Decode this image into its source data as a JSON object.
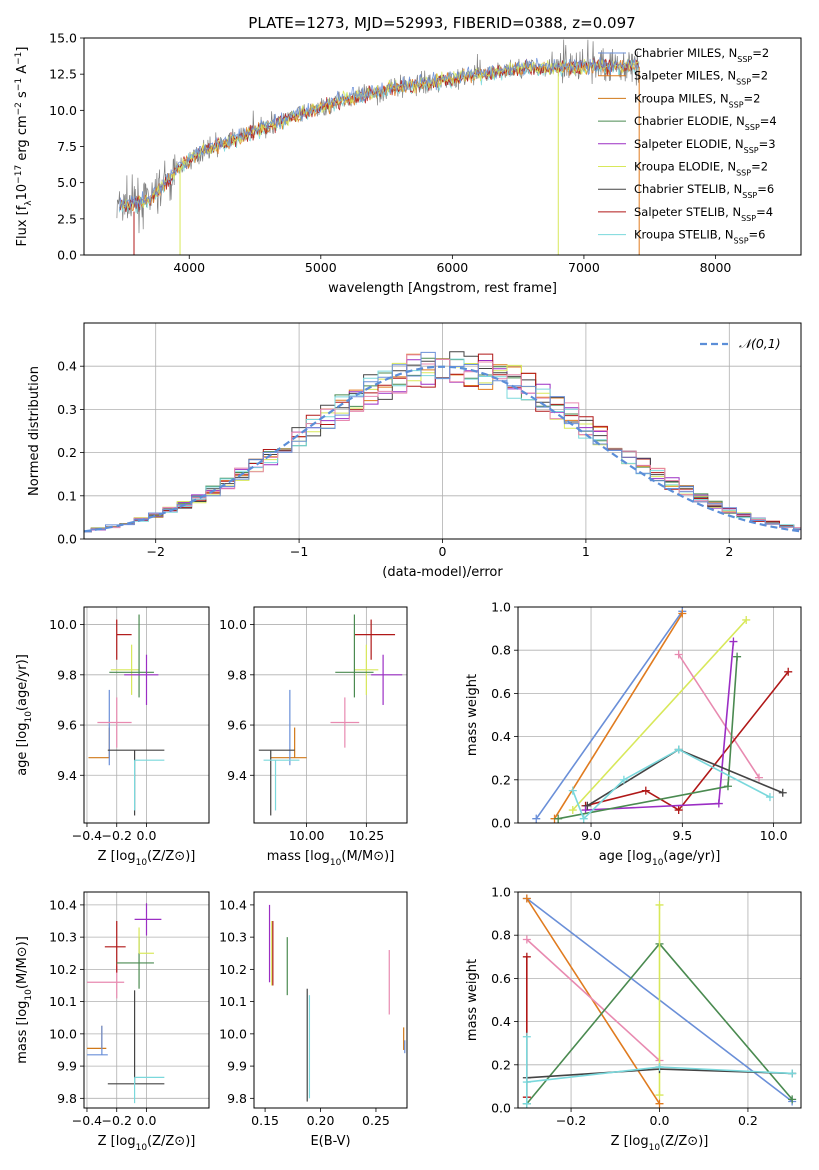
{
  "figure_title": "PLATE=1273, MJD=52993, FIBERID=0388, z=0.097",
  "colors": {
    "Chabrier MILES": "#6a8fd8",
    "Salpeter MILES": "#e07b1f",
    "Kroupa MILES": "#d07818",
    "Chabrier ELODIE": "#4a8a50",
    "Salpeter ELODIE": "#9b2ec4",
    "Kroupa ELODIE": "#d8e85a",
    "Chabrier STELIB": "#444444",
    "Salpeter STELIB": "#b01818",
    "Kroupa STELIB": "#7ad8dc",
    "pink": "#e88ab0",
    "green2": "#6a9a60"
  },
  "chart_data": [
    {
      "id": "spectrum",
      "type": "line",
      "xlabel": "wavelength [Angstrom, rest frame]",
      "ylabel": "Flux [f_λ10^-17 erg cm^-2 s^-1 A^-1]",
      "xlim": [
        3200,
        8650
      ],
      "ylim": [
        0,
        15
      ],
      "xticks": [
        4000,
        5000,
        6000,
        7000,
        8000
      ],
      "yticks": [
        0.0,
        2.5,
        5.0,
        7.5,
        10.0,
        12.5,
        15.0
      ],
      "legend": [
        {
          "label": "Chabrier MILES, N",
          "sub": "SSP",
          "tail": "=2"
        },
        {
          "label": "Salpeter MILES, N",
          "sub": "SSP",
          "tail": "=2"
        },
        {
          "label": "Kroupa MILES, N",
          "sub": "SSP",
          "tail": "=2"
        },
        {
          "label": "Chabrier ELODIE, N",
          "sub": "SSP",
          "tail": "=4"
        },
        {
          "label": "Salpeter ELODIE, N",
          "sub": "SSP",
          "tail": "=3"
        },
        {
          "label": "Kroupa ELODIE, N",
          "sub": "SSP",
          "tail": "=2"
        },
        {
          "label": "Chabrier STELIB, N",
          "sub": "SSP",
          "tail": "=6"
        },
        {
          "label": "Salpeter STELIB, N",
          "sub": "SSP",
          "tail": "=4"
        },
        {
          "label": "Kroupa STELIB, N",
          "sub": "SSP",
          "tail": "=6"
        }
      ],
      "continuum_points": [
        [
          3450,
          3.3
        ],
        [
          3700,
          3.8
        ],
        [
          3950,
          6.2
        ],
        [
          4100,
          7.2
        ],
        [
          4400,
          8.2
        ],
        [
          4800,
          9.6
        ],
        [
          5200,
          10.8
        ],
        [
          5600,
          11.6
        ],
        [
          6000,
          12.2
        ],
        [
          6500,
          12.9
        ],
        [
          7000,
          13.0
        ],
        [
          7400,
          13.1
        ]
      ]
    },
    {
      "id": "residuals",
      "type": "step",
      "xlabel": "(data-model)/error",
      "ylabel": "Normed distribution",
      "xlim": [
        -2.5,
        2.5
      ],
      "ylim": [
        0,
        0.5
      ],
      "xticks": [
        -2,
        -1,
        0,
        1,
        2
      ],
      "yticks": [
        0.0,
        0.1,
        0.2,
        0.3,
        0.4
      ],
      "legend": "𝒩(0,1)",
      "bin_width": 0.1
    },
    {
      "id": "age_vs_Z",
      "type": "errorbar",
      "xlabel": "Z [log10(Z/Z⊙)]",
      "ylabel": "age [log10(age/yr)]",
      "xlim": [
        -0.42,
        0.42
      ],
      "ylim": [
        9.21,
        10.07
      ],
      "xticks": [
        -0.4,
        -0.2,
        0.0
      ],
      "yticks": [
        9.4,
        9.6,
        9.8,
        10.0
      ],
      "points": [
        {
          "x": -0.25,
          "y": 9.47,
          "xe": [
            0.14,
            0.0
          ],
          "ye": [
            0.0,
            0.12
          ],
          "c": "Kroupa MILES"
        },
        {
          "x": -0.25,
          "y": 9.44,
          "xe": [
            0.0,
            0.0
          ],
          "ye": [
            0.0,
            0.3
          ],
          "c": "Chabrier MILES"
        },
        {
          "x": -0.2,
          "y": 9.61,
          "xe": [
            0.13,
            0.1
          ],
          "ye": [
            0.1,
            0.1
          ],
          "c": "pink"
        },
        {
          "x": -0.2,
          "y": 9.96,
          "xe": [
            0.0,
            0.1
          ],
          "ye": [
            0.1,
            0.06
          ],
          "c": "Salpeter STELIB"
        },
        {
          "x": -0.08,
          "y": 9.5,
          "xe": [
            0.18,
            0.2
          ],
          "ye": [
            0.26,
            0.0
          ],
          "c": "Chabrier STELIB"
        },
        {
          "x": -0.08,
          "y": 9.46,
          "xe": [
            0.0,
            0.2
          ],
          "ye": [
            0.2,
            0.0
          ],
          "c": "Kroupa STELIB"
        },
        {
          "x": -0.1,
          "y": 9.82,
          "xe": [
            0.14,
            0.05
          ],
          "ye": [
            0.1,
            0.1
          ],
          "c": "Kroupa ELODIE"
        },
        {
          "x": -0.05,
          "y": 9.81,
          "xe": [
            0.2,
            0.1
          ],
          "ye": [
            0.1,
            0.23
          ],
          "c": "Chabrier ELODIE"
        },
        {
          "x": 0.0,
          "y": 9.8,
          "xe": [
            0.15,
            0.08
          ],
          "ye": [
            0.12,
            0.08
          ],
          "c": "Salpeter ELODIE"
        }
      ]
    },
    {
      "id": "age_vs_mass",
      "type": "errorbar",
      "xlabel": "mass [log10(M/M⊙)]",
      "ylabel": "",
      "xlim": [
        9.78,
        10.42
      ],
      "ylim": [
        9.21,
        10.07
      ],
      "xticks": [
        10.0,
        10.25
      ],
      "yticks": [
        9.4,
        9.6,
        9.8,
        10.0
      ],
      "points": [
        {
          "x": 9.95,
          "y": 9.47,
          "xe": [
            0.1,
            0.05
          ],
          "ye": [
            0.0,
            0.12
          ],
          "c": "Kroupa MILES"
        },
        {
          "x": 9.93,
          "y": 9.44,
          "xe": [
            0.0,
            0.0
          ],
          "ye": [
            0.0,
            0.3
          ],
          "c": "Chabrier MILES"
        },
        {
          "x": 10.16,
          "y": 9.61,
          "xe": [
            0.06,
            0.06
          ],
          "ye": [
            0.1,
            0.1
          ],
          "c": "pink"
        },
        {
          "x": 10.27,
          "y": 9.96,
          "xe": [
            0.07,
            0.1
          ],
          "ye": [
            0.1,
            0.06
          ],
          "c": "Salpeter STELIB"
        },
        {
          "x": 9.85,
          "y": 9.5,
          "xe": [
            0.05,
            0.1
          ],
          "ye": [
            0.26,
            0.0
          ],
          "c": "Chabrier STELIB"
        },
        {
          "x": 9.87,
          "y": 9.46,
          "xe": [
            0.05,
            0.1
          ],
          "ye": [
            0.2,
            0.0
          ],
          "c": "Kroupa STELIB"
        },
        {
          "x": 10.25,
          "y": 9.82,
          "xe": [
            0.05,
            0.05
          ],
          "ye": [
            0.1,
            0.1
          ],
          "c": "Kroupa ELODIE"
        },
        {
          "x": 10.2,
          "y": 9.81,
          "xe": [
            0.08,
            0.08
          ],
          "ye": [
            0.1,
            0.23
          ],
          "c": "Chabrier ELODIE"
        },
        {
          "x": 10.32,
          "y": 9.8,
          "xe": [
            0.05,
            0.08
          ],
          "ye": [
            0.12,
            0.08
          ],
          "c": "Salpeter ELODIE"
        }
      ]
    },
    {
      "id": "massweight_vs_age",
      "type": "line",
      "xlabel": "age [log10(age/yr)]",
      "ylabel": "mass weight",
      "xlim": [
        8.6,
        10.15
      ],
      "ylim": [
        0,
        1
      ],
      "xticks": [
        9.0,
        9.5,
        10.0
      ],
      "yticks": [
        0.0,
        0.2,
        0.4,
        0.6,
        0.8,
        1.0
      ],
      "series": [
        {
          "c": "Chabrier MILES",
          "x": [
            8.7,
            9.5
          ],
          "y": [
            0.02,
            0.98
          ]
        },
        {
          "c": "Salpeter MILES",
          "x": [
            8.8,
            9.5
          ],
          "y": [
            0.02,
            0.97
          ]
        },
        {
          "c": "Kroupa ELODIE",
          "x": [
            8.9,
            9.85
          ],
          "y": [
            0.06,
            0.94
          ]
        },
        {
          "c": "pink",
          "x": [
            9.48,
            9.92
          ],
          "y": [
            0.78,
            0.21
          ]
        },
        {
          "c": "Salpeter STELIB",
          "x": [
            8.97,
            9.3,
            9.48,
            10.08
          ],
          "y": [
            0.08,
            0.15,
            0.06,
            0.7
          ]
        },
        {
          "c": "Salpeter ELODIE",
          "x": [
            8.97,
            9.7,
            9.78
          ],
          "y": [
            0.06,
            0.09,
            0.84
          ]
        },
        {
          "c": "Chabrier ELODIE",
          "x": [
            8.82,
            9.75,
            9.8
          ],
          "y": [
            0.02,
            0.17,
            0.77
          ]
        },
        {
          "c": "Chabrier STELIB",
          "x": [
            8.98,
            9.48,
            10.05
          ],
          "y": [
            0.08,
            0.34,
            0.14
          ]
        },
        {
          "c": "Kroupa STELIB",
          "x": [
            8.9,
            8.96,
            9.18,
            9.48,
            9.98
          ],
          "y": [
            0.15,
            0.02,
            0.2,
            0.34,
            0.12
          ]
        }
      ]
    },
    {
      "id": "mass_vs_Z",
      "type": "errorbar",
      "xlabel": "Z [log10(Z/Z⊙)]",
      "ylabel": "mass [log10(M/M⊙)]",
      "xlim": [
        -0.42,
        0.42
      ],
      "ylim": [
        9.77,
        10.44
      ],
      "xticks": [
        -0.4,
        -0.2,
        0.0
      ],
      "yticks": [
        9.8,
        9.9,
        10.0,
        10.1,
        10.2,
        10.3,
        10.4
      ],
      "points": [
        {
          "x": -0.3,
          "y": 9.955,
          "xe": [
            0.1,
            0.03
          ],
          "ye": [
            0.0,
            0.07
          ],
          "c": "Kroupa MILES"
        },
        {
          "x": -0.3,
          "y": 9.935,
          "xe": [
            0.1,
            0.04
          ],
          "ye": [
            0.0,
            0.09
          ],
          "c": "Chabrier MILES"
        },
        {
          "x": -0.2,
          "y": 10.16,
          "xe": [
            0.2,
            0.05
          ],
          "ye": [
            0.05,
            0.05
          ],
          "c": "pink"
        },
        {
          "x": -0.2,
          "y": 10.27,
          "xe": [
            0.08,
            0.06
          ],
          "ye": [
            0.08,
            0.08
          ],
          "c": "Salpeter STELIB"
        },
        {
          "x": -0.08,
          "y": 9.845,
          "xe": [
            0.18,
            0.2
          ],
          "ye": [
            0.0,
            0.29
          ],
          "c": "Chabrier STELIB"
        },
        {
          "x": -0.08,
          "y": 9.865,
          "xe": [
            0.0,
            0.2
          ],
          "ye": [
            0.08,
            0.0
          ],
          "c": "Kroupa STELIB"
        },
        {
          "x": -0.05,
          "y": 10.22,
          "xe": [
            0.15,
            0.1
          ],
          "ye": [
            0.08,
            0.08
          ],
          "c": "Chabrier ELODIE"
        },
        {
          "x": -0.05,
          "y": 10.25,
          "xe": [
            0.0,
            0.1
          ],
          "ye": [
            0.0,
            0.08
          ],
          "c": "Kroupa ELODIE"
        },
        {
          "x": 0.0,
          "y": 10.355,
          "xe": [
            0.08,
            0.1
          ],
          "ye": [
            0.05,
            0.05
          ],
          "c": "Salpeter ELODIE"
        }
      ]
    },
    {
      "id": "mass_vs_ebv",
      "type": "errorbar",
      "xlabel": "E(B-V)",
      "ylabel": "",
      "xlim": [
        0.14,
        0.278
      ],
      "ylim": [
        9.77,
        10.44
      ],
      "xticks": [
        0.15,
        0.2,
        0.25
      ],
      "yticks": [
        9.8,
        9.9,
        10.0,
        10.1,
        10.2,
        10.3,
        10.4
      ],
      "points": [
        {
          "x": 0.154,
          "y": 10.28,
          "xe": [
            0.0,
            0.0
          ],
          "ye": [
            0.12,
            0.12
          ],
          "c": "Salpeter ELODIE"
        },
        {
          "x": 0.156,
          "y": 10.25,
          "xe": [
            0.0,
            0.0
          ],
          "ye": [
            0.1,
            0.1
          ],
          "c": "Kroupa ELODIE"
        },
        {
          "x": 0.157,
          "y": 10.27,
          "xe": [
            0.0,
            0.0
          ],
          "ye": [
            0.12,
            0.08
          ],
          "c": "Salpeter STELIB"
        },
        {
          "x": 0.17,
          "y": 10.21,
          "xe": [
            0.0,
            0.0
          ],
          "ye": [
            0.09,
            0.09
          ],
          "c": "Chabrier ELODIE"
        },
        {
          "x": 0.188,
          "y": 9.965,
          "xe": [
            0.0,
            0.0
          ],
          "ye": [
            0.175,
            0.175
          ],
          "c": "Chabrier STELIB"
        },
        {
          "x": 0.19,
          "y": 9.96,
          "xe": [
            0.0,
            0.0
          ],
          "ye": [
            0.16,
            0.16
          ],
          "c": "Kroupa STELIB"
        },
        {
          "x": 0.262,
          "y": 10.16,
          "xe": [
            0.0,
            0.0
          ],
          "ye": [
            0.1,
            0.1
          ],
          "c": "pink"
        },
        {
          "x": 0.275,
          "y": 9.985,
          "xe": [
            0.0,
            0.0
          ],
          "ye": [
            0.035,
            0.035
          ],
          "c": "Kroupa MILES"
        },
        {
          "x": 0.276,
          "y": 9.96,
          "xe": [
            0.0,
            0.0
          ],
          "ye": [
            0.02,
            0.02
          ],
          "c": "Chabrier MILES"
        }
      ]
    },
    {
      "id": "massweight_vs_Z",
      "type": "line",
      "xlabel": "Z [log10(Z/Z⊙)]",
      "ylabel": "mass weight",
      "xlim": [
        -0.32,
        0.32
      ],
      "ylim": [
        0,
        1
      ],
      "xticks": [
        -0.2,
        0.0,
        0.2
      ],
      "yticks": [
        0.0,
        0.2,
        0.4,
        0.6,
        0.8,
        1.0
      ],
      "series": [
        {
          "c": "Chabrier MILES",
          "x": [
            -0.3,
            0.3
          ],
          "y": [
            0.97,
            0.03
          ]
        },
        {
          "c": "Salpeter MILES",
          "x": [
            -0.3,
            0.0
          ],
          "y": [
            0.97,
            0.02
          ]
        },
        {
          "c": "pink",
          "x": [
            -0.3,
            0.0
          ],
          "y": [
            0.78,
            0.22
          ]
        },
        {
          "c": "Chabrier ELODIE",
          "x": [
            -0.3,
            0.0,
            0.3
          ],
          "y": [
            0.02,
            0.76,
            0.04
          ]
        },
        {
          "c": "Kroupa ELODIE",
          "x": [
            0.0,
            0.0
          ],
          "y": [
            0.94,
            0.06
          ]
        },
        {
          "c": "Chabrier STELIB",
          "x": [
            -0.3,
            0.0,
            0.3
          ],
          "y": [
            0.14,
            0.18,
            0.16
          ]
        },
        {
          "c": "Kroupa STELIB",
          "x": [
            -0.3,
            0.0,
            0.3
          ],
          "y": [
            0.12,
            0.19,
            0.16
          ]
        },
        {
          "c": "Salpeter STELIB",
          "x": [
            -0.3,
            -0.3
          ],
          "y": [
            0.7,
            0.05
          ]
        },
        {
          "c": "Kroupa STELIB",
          "x": [
            -0.3,
            -0.3
          ],
          "y": [
            0.33,
            0.02
          ]
        }
      ]
    }
  ]
}
